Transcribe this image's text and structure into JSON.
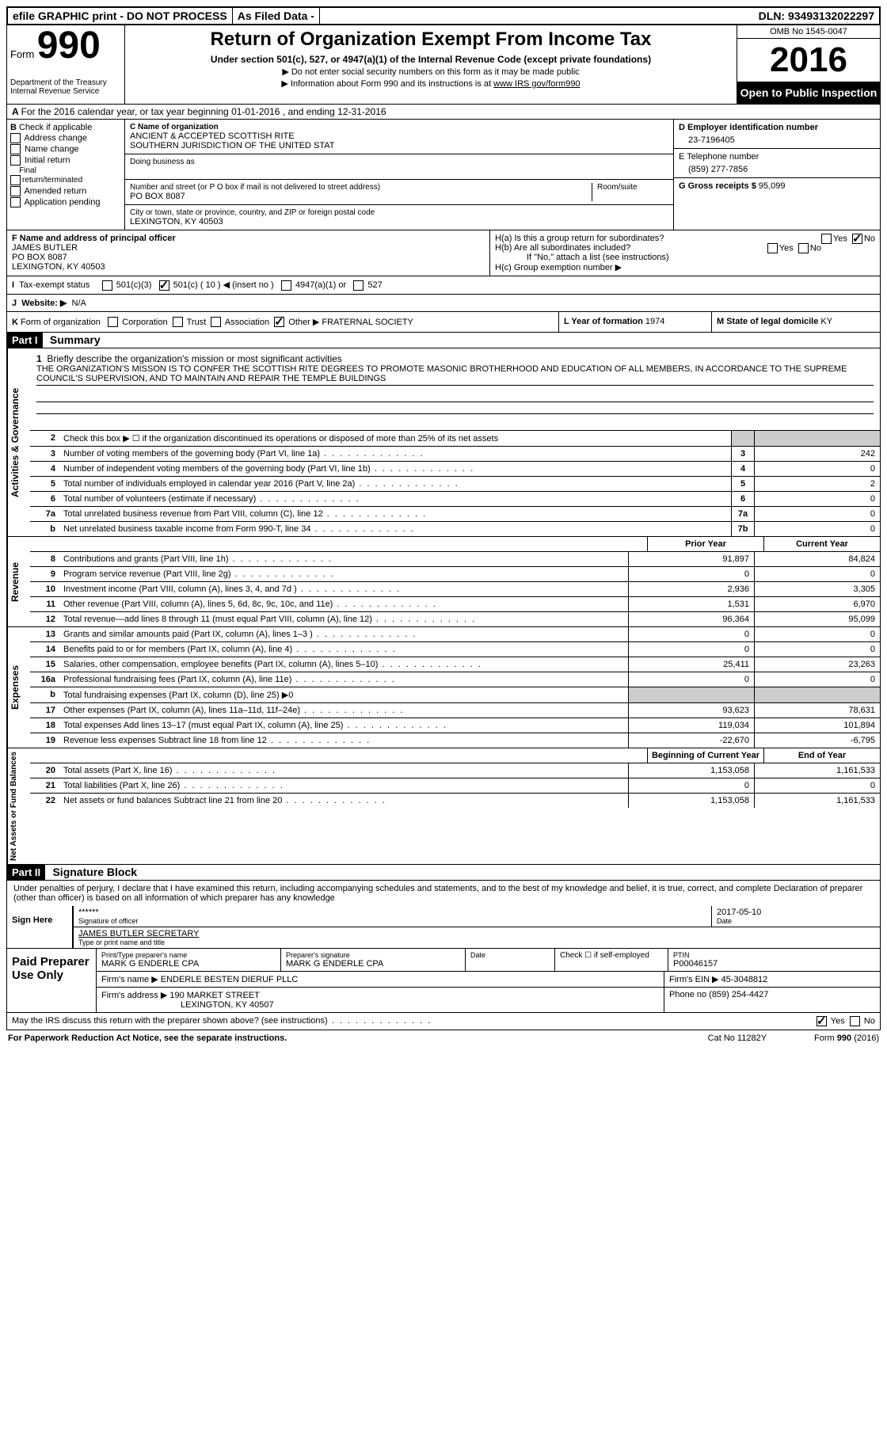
{
  "top": {
    "efile": "efile GRAPHIC print - DO NOT PROCESS",
    "as_filed": "As Filed Data -",
    "dln": "DLN: 93493132022297"
  },
  "header": {
    "form_word": "Form",
    "form_num": "990",
    "dept1": "Department of the Treasury",
    "dept2": "Internal Revenue Service",
    "title": "Return of Organization Exempt From Income Tax",
    "subtitle": "Under section 501(c), 527, or 4947(a)(1) of the Internal Revenue Code (except private foundations)",
    "instr1": "▶ Do not enter social security numbers on this form as it may be made public",
    "instr2": "▶ Information about Form 990 and its instructions is at ",
    "instr2_link": "www IRS gov/form990",
    "omb": "OMB No  1545-0047",
    "year": "2016",
    "open": "Open to Public Inspection"
  },
  "A": "For the 2016 calendar year, or tax year beginning 01-01-2016   , and ending 12-31-2016",
  "B": {
    "label": "Check if applicable",
    "items": [
      "Address change",
      "Name change",
      "Initial return",
      "Final return/terminated",
      "Amended return",
      "Application pending"
    ]
  },
  "C": {
    "name_label": "C Name of organization",
    "name1": "ANCIENT & ACCEPTED SCOTTISH RITE",
    "name2": "SOUTHERN JURISDICTION OF THE UNITED STAT",
    "dba_label": "Doing business as",
    "street_label": "Number and street (or P O  box if mail is not delivered to street address)",
    "room_label": "Room/suite",
    "street": "PO BOX 8087",
    "city_label": "City or town, state or province, country, and ZIP or foreign postal code",
    "city": "LEXINGTON, KY  40503"
  },
  "D": {
    "label": "D Employer identification number",
    "val": "23-7196405"
  },
  "E": {
    "label": "E Telephone number",
    "val": "(859) 277-7856"
  },
  "G": {
    "label": "G Gross receipts $ ",
    "val": "95,099"
  },
  "F": {
    "label": "F  Name and address of principal officer",
    "line1": "JAMES BUTLER",
    "line2": "PO BOX 8087",
    "line3": "LEXINGTON, KY  40503"
  },
  "H": {
    "a": "H(a)  Is this a group return for subordinates?",
    "b": "H(b)  Are all subordinates included?",
    "note": "If \"No,\" attach a list  (see instructions)",
    "c": "H(c)  Group exemption number ▶"
  },
  "I": {
    "label": "Tax-exempt status",
    "opt1": "501(c)(3)",
    "opt2": "501(c) ( 10 ) ◀ (insert no )",
    "opt3": "4947(a)(1) or",
    "opt4": "527"
  },
  "J": {
    "label": "Website: ▶",
    "val": "N/A"
  },
  "K": {
    "label": "Form of organization",
    "opts": [
      "Corporation",
      "Trust",
      "Association",
      "Other ▶"
    ],
    "other_val": "FRATERNAL SOCIETY"
  },
  "L": {
    "label": "L Year of formation  ",
    "val": "1974"
  },
  "M": {
    "label": "M State of legal domicile  ",
    "val": "KY"
  },
  "part1": "Part I",
  "part1_title": "Summary",
  "side_labels": {
    "ag": "Activities & Governance",
    "rev": "Revenue",
    "exp": "Expenses",
    "net": "Net Assets or Fund Balances"
  },
  "line1": {
    "num": "1",
    "label": "Briefly describe the organization's mission or most significant activities",
    "text": "THE ORGANIZATION'S MISSON IS TO CONFER THE SCOTTISH RITE DEGREES TO PROMOTE MASONIC BROTHERHOOD AND EDUCATION OF ALL MEMBERS, IN ACCORDANCE TO THE SUPREME COUNCIL'S SUPERVISION, AND TO MAINTAIN AND REPAIR THE TEMPLE BUILDINGS"
  },
  "line2": "Check this box ▶ ☐  if the organization discontinued its operations or disposed of more than 25% of its net assets",
  "summary_rows": [
    {
      "n": "3",
      "label": "Number of voting members of the governing body (Part VI, line 1a)",
      "box": "3",
      "val": "242"
    },
    {
      "n": "4",
      "label": "Number of independent voting members of the governing body (Part VI, line 1b)",
      "box": "4",
      "val": "0"
    },
    {
      "n": "5",
      "label": "Total number of individuals employed in calendar year 2016 (Part V, line 2a)",
      "box": "5",
      "val": "2"
    },
    {
      "n": "6",
      "label": "Total number of volunteers (estimate if necessary)",
      "box": "6",
      "val": "0"
    },
    {
      "n": "7a",
      "label": "Total unrelated business revenue from Part VIII, column (C), line 12",
      "box": "7a",
      "val": "0"
    },
    {
      "n": "b",
      "label": "Net unrelated business taxable income from Form 990-T, line 34",
      "box": "7b",
      "val": "0"
    }
  ],
  "col_headers": {
    "prior": "Prior Year",
    "current": "Current Year"
  },
  "revenue_rows": [
    {
      "n": "8",
      "label": "Contributions and grants (Part VIII, line 1h)",
      "prior": "91,897",
      "cur": "84,824"
    },
    {
      "n": "9",
      "label": "Program service revenue (Part VIII, line 2g)",
      "prior": "0",
      "cur": "0"
    },
    {
      "n": "10",
      "label": "Investment income (Part VIII, column (A), lines 3, 4, and 7d )",
      "prior": "2,936",
      "cur": "3,305"
    },
    {
      "n": "11",
      "label": "Other revenue (Part VIII, column (A), lines 5, 6d, 8c, 9c, 10c, and 11e)",
      "prior": "1,531",
      "cur": "6,970"
    },
    {
      "n": "12",
      "label": "Total revenue—add lines 8 through 11 (must equal Part VIII, column (A), line 12)",
      "prior": "96,364",
      "cur": "95,099"
    }
  ],
  "expense_rows": [
    {
      "n": "13",
      "label": "Grants and similar amounts paid (Part IX, column (A), lines 1–3 )",
      "prior": "0",
      "cur": "0"
    },
    {
      "n": "14",
      "label": "Benefits paid to or for members (Part IX, column (A), line 4)",
      "prior": "0",
      "cur": "0"
    },
    {
      "n": "15",
      "label": "Salaries, other compensation, employee benefits (Part IX, column (A), lines 5–10)",
      "prior": "25,411",
      "cur": "23,263"
    },
    {
      "n": "16a",
      "label": "Professional fundraising fees (Part IX, column (A), line 11e)",
      "prior": "0",
      "cur": "0"
    },
    {
      "n": "b",
      "label": "Total fundraising expenses (Part IX, column (D), line 25) ▶0",
      "prior": "",
      "cur": "",
      "shaded": true
    },
    {
      "n": "17",
      "label": "Other expenses (Part IX, column (A), lines 11a–11d, 11f–24e)",
      "prior": "93,623",
      "cur": "78,631"
    },
    {
      "n": "18",
      "label": "Total expenses  Add lines 13–17 (must equal Part IX, column (A), line 25)",
      "prior": "119,034",
      "cur": "101,894"
    },
    {
      "n": "19",
      "label": "Revenue less expenses  Subtract line 18 from line 12",
      "prior": "-22,670",
      "cur": "-6,795"
    }
  ],
  "net_headers": {
    "begin": "Beginning of Current Year",
    "end": "End of Year"
  },
  "net_rows": [
    {
      "n": "20",
      "label": "Total assets (Part X, line 16)",
      "prior": "1,153,058",
      "cur": "1,161,533"
    },
    {
      "n": "21",
      "label": "Total liabilities (Part X, line 26)",
      "prior": "0",
      "cur": "0"
    },
    {
      "n": "22",
      "label": "Net assets or fund balances  Subtract line 21 from line 20",
      "prior": "1,153,058",
      "cur": "1,161,533"
    }
  ],
  "part2": "Part II",
  "part2_title": "Signature Block",
  "sig": {
    "perjury": "Under penalties of perjury, I declare that I have examined this return, including accompanying schedules and statements, and to the best of my knowledge and belief, it is true, correct, and complete  Declaration of preparer (other than officer) is based on all information of which preparer has any knowledge",
    "sign_here": "Sign Here",
    "stars": "******",
    "sig_label": "Signature of officer",
    "date": "2017-05-10",
    "date_label": "Date",
    "name": "JAMES BUTLER  SECRETARY",
    "name_label": "Type or print name and title"
  },
  "prep": {
    "label": "Paid Preparer Use Only",
    "name_label": "Print/Type preparer's name",
    "name": "MARK G ENDERLE CPA",
    "sig_label": "Preparer's signature",
    "sig": "MARK G ENDERLE CPA",
    "date_label": "Date",
    "check_label": "Check ☐ if self-employed",
    "ptin_label": "PTIN",
    "ptin": "P00046157",
    "firm_label": "Firm's name      ▶ ",
    "firm": "ENDERLE BESTEN DIERUF PLLC",
    "ein_label": "Firm's EIN ▶ ",
    "ein": "45-3048812",
    "addr_label": "Firm's address ▶ ",
    "addr1": "190 MARKET STREET",
    "addr2": "LEXINGTON, KY  40507",
    "phone_label": "Phone no  ",
    "phone": "(859) 254-4427"
  },
  "discuss": "May the IRS discuss this return with the preparer shown above? (see instructions)",
  "footer": {
    "left": "For Paperwork Reduction Act Notice, see the separate instructions.",
    "mid": "Cat No  11282Y",
    "right": "Form 990 (2016)"
  }
}
